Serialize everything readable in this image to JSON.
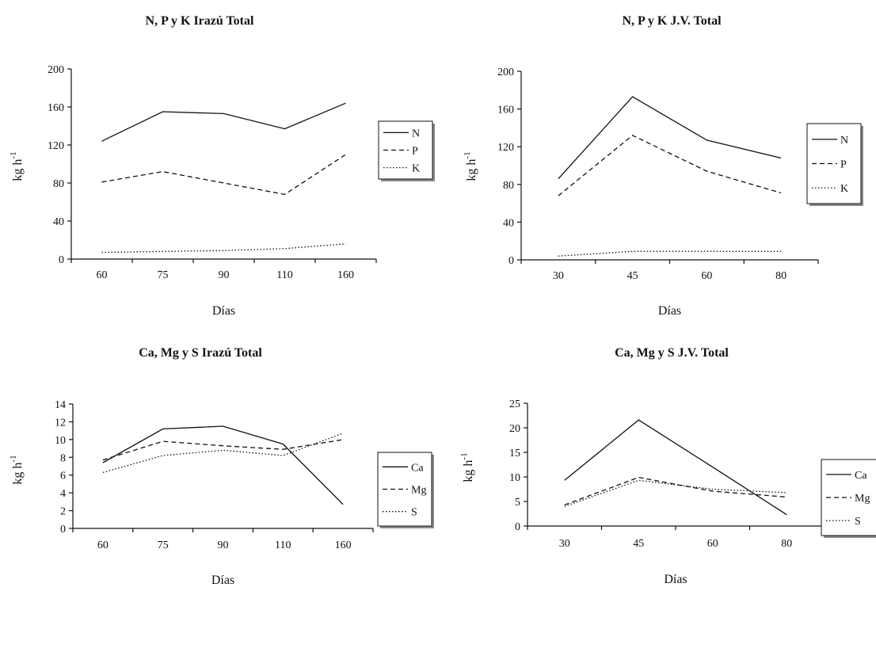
{
  "chart_data": [
    {
      "type": "line",
      "title": "N, P y K Irazú Total",
      "xlabel": "Días",
      "ylabel": "kg h",
      "ylabel_sup": "-1",
      "categories": [
        "60",
        "75",
        "90",
        "110",
        "160"
      ],
      "ylim": [
        0,
        200
      ],
      "yticks": [
        0,
        40,
        80,
        120,
        160,
        200
      ],
      "grid": false,
      "legend": "right",
      "series": [
        {
          "name": "N",
          "values": [
            124,
            155,
            153,
            137,
            164
          ]
        },
        {
          "name": "P",
          "values": [
            81,
            92,
            80,
            68,
            110
          ]
        },
        {
          "name": "K",
          "values": [
            7,
            8,
            9,
            11,
            16
          ]
        }
      ]
    },
    {
      "type": "line",
      "title": "N, P y K J.V. Total",
      "xlabel": "Días",
      "ylabel": "kg h",
      "ylabel_sup": "-1",
      "categories": [
        "30",
        "45",
        "60",
        "80"
      ],
      "ylim": [
        0,
        200
      ],
      "yticks": [
        0,
        40,
        80,
        120,
        160,
        200
      ],
      "grid": false,
      "legend": "right",
      "series": [
        {
          "name": "N",
          "values": [
            86,
            173,
            127,
            108
          ]
        },
        {
          "name": "P",
          "values": [
            68,
            132,
            94,
            71
          ]
        },
        {
          "name": "K",
          "values": [
            4,
            9,
            9,
            9
          ]
        }
      ]
    },
    {
      "type": "line",
      "title": "Ca, Mg y S Irazú Total",
      "xlabel": "Días",
      "ylabel": "kg h",
      "ylabel_sup": "-1",
      "categories": [
        "60",
        "75",
        "90",
        "110",
        "160"
      ],
      "ylim": [
        0,
        14
      ],
      "yticks": [
        0,
        2,
        4,
        6,
        8,
        10,
        12,
        14
      ],
      "grid": false,
      "legend": "right",
      "series": [
        {
          "name": "Ca",
          "values": [
            7.4,
            11.2,
            11.5,
            9.5,
            2.7
          ]
        },
        {
          "name": "Mg",
          "values": [
            7.7,
            9.8,
            9.3,
            8.9,
            10.0
          ]
        },
        {
          "name": "S",
          "values": [
            6.3,
            8.2,
            8.8,
            8.2,
            10.7
          ]
        }
      ]
    },
    {
      "type": "line",
      "title": "Ca, Mg y S J.V. Total",
      "xlabel": "Días",
      "ylabel": "kg h",
      "ylabel_sup": "-1",
      "categories": [
        "30",
        "45",
        "60",
        "80"
      ],
      "ylim": [
        0,
        25
      ],
      "yticks": [
        0,
        5,
        10,
        15,
        20,
        25
      ],
      "grid": false,
      "legend": "right",
      "series": [
        {
          "name": "Ca",
          "values": [
            9.3,
            21.6,
            12.0,
            2.3
          ]
        },
        {
          "name": "Mg",
          "values": [
            4.3,
            9.9,
            7.1,
            5.9
          ]
        },
        {
          "name": "S",
          "values": [
            4.0,
            9.3,
            7.5,
            6.8
          ]
        }
      ]
    }
  ],
  "styles": {
    "line_color": "#111111",
    "series_dash": [
      "solid",
      "dashed",
      "dotted"
    ]
  }
}
